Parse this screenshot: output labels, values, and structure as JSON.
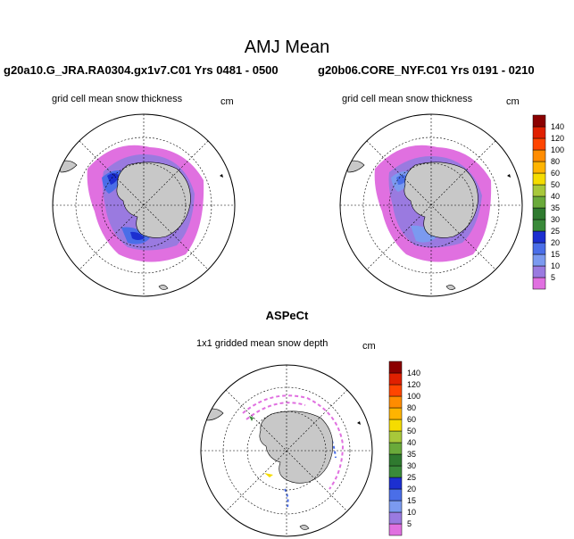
{
  "figure": {
    "title": "AMJ Mean"
  },
  "panels": {
    "left": {
      "title": "g20a10.G_JRA.RA0304.gx1v7.C01  Yrs 0481 - 0500",
      "variable": "grid cell mean snow thickness",
      "units": "cm"
    },
    "right": {
      "title": "g20b06.CORE_NYF.C01  Yrs 0191 - 0210",
      "variable": "grid cell mean snow thickness",
      "units": "cm"
    },
    "bottom": {
      "title": "ASPeCt",
      "variable": "1x1 gridded mean snow depth",
      "units": "cm"
    }
  },
  "chart_data": [
    {
      "type": "heatmap",
      "projection": "south-polar-stereographic",
      "title": "g20a10.G_JRA.RA0304.gx1v7.C01  Yrs 0481 - 0500",
      "subtitle": "grid cell mean snow thickness",
      "units": "cm",
      "colorbar_levels": [
        5,
        10,
        15,
        20,
        25,
        30,
        35,
        40,
        50,
        60,
        80,
        100,
        120,
        140
      ],
      "colorbar_colors": [
        "#e070e0",
        "#9a7ae0",
        "#7b9af0",
        "#4a6ee8",
        "#1c2fd0",
        "#3a8a3a",
        "#2f7a2f",
        "#6aaa3a",
        "#a8c83a",
        "#f5dc00",
        "#ffb400",
        "#ff8c00",
        "#ff4500",
        "#e02000",
        "#8b0000"
      ]
    },
    {
      "type": "heatmap",
      "projection": "south-polar-stereographic",
      "title": "g20b06.CORE_NYF.C01  Yrs 0191 - 0210",
      "subtitle": "grid cell mean snow thickness",
      "units": "cm",
      "colorbar_levels": [
        5,
        10,
        15,
        20,
        25,
        30,
        35,
        40,
        50,
        60,
        80,
        100,
        120,
        140
      ],
      "colorbar_colors": [
        "#e070e0",
        "#9a7ae0",
        "#7b9af0",
        "#4a6ee8",
        "#1c2fd0",
        "#3a8a3a",
        "#2f7a2f",
        "#6aaa3a",
        "#a8c83a",
        "#f5dc00",
        "#ffb400",
        "#ff8c00",
        "#ff4500",
        "#e02000",
        "#8b0000"
      ]
    },
    {
      "type": "heatmap",
      "projection": "south-polar-stereographic",
      "title": "ASPeCt",
      "subtitle": "1x1 gridded mean snow depth",
      "units": "cm",
      "colorbar_levels": [
        5,
        10,
        15,
        20,
        25,
        30,
        35,
        40,
        50,
        60,
        80,
        100,
        120,
        140
      ],
      "colorbar_colors": [
        "#e070e0",
        "#9a7ae0",
        "#7b9af0",
        "#4a6ee8",
        "#1c2fd0",
        "#3a8a3a",
        "#2f7a2f",
        "#6aaa3a",
        "#a8c83a",
        "#f5dc00",
        "#ffb400",
        "#ff8c00",
        "#ff4500",
        "#e02000",
        "#8b0000"
      ]
    }
  ]
}
